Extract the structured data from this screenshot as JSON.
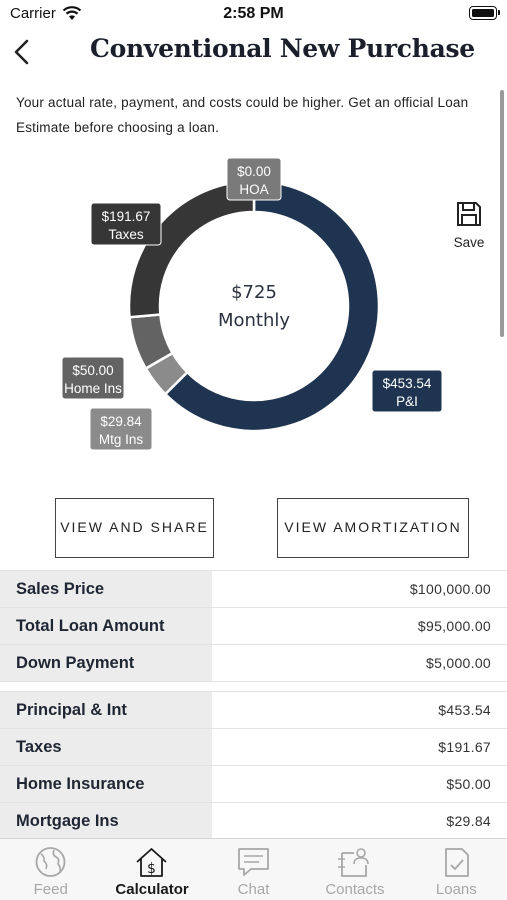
{
  "status_bar": {
    "carrier": "Carrier",
    "time": "2:58 PM"
  },
  "header": {
    "title": "Conventional New Purchase",
    "back_icon": "chevron-left-icon"
  },
  "disclaimer": "Your actual rate, payment, and costs could be higher. Get an official Loan Estimate before choosing a loan.",
  "save": {
    "label": "Save",
    "icon": "floppy-disk-icon"
  },
  "chart_data": {
    "type": "pie",
    "center": {
      "amount": "$725",
      "label": "Monthly"
    },
    "slices": [
      {
        "name": "P&I",
        "value": 453.54,
        "label": "$453.54",
        "color": "#1e3450"
      },
      {
        "name": "Mtg Ins",
        "value": 29.84,
        "label": "$29.84",
        "color": "#8b8b8b"
      },
      {
        "name": "Home Ins",
        "value": 50.0,
        "label": "$50.00",
        "color": "#636363"
      },
      {
        "name": "Taxes",
        "value": 191.67,
        "label": "$191.67",
        "color": "#363636"
      },
      {
        "name": "HOA",
        "value": 0.0,
        "label": "$0.00",
        "color": "#7a7a7a"
      }
    ]
  },
  "buttons": {
    "view_share": "VIEW AND SHARE",
    "view_amortization": "VIEW AMORTIZATION"
  },
  "summary": [
    {
      "label": "Sales Price",
      "value": "$100,000.00"
    },
    {
      "label": "Total Loan Amount",
      "value": "$95,000.00"
    },
    {
      "label": "Down Payment",
      "value": "$5,000.00"
    }
  ],
  "breakdown": [
    {
      "label": "Principal & Int",
      "value": "$453.54"
    },
    {
      "label": "Taxes",
      "value": "$191.67"
    },
    {
      "label": "Home Insurance",
      "value": "$50.00"
    },
    {
      "label": "Mortgage Ins",
      "value": "$29.84"
    }
  ],
  "tabs": [
    {
      "label": "Feed",
      "icon": "globe-icon",
      "active": false
    },
    {
      "label": "Calculator",
      "icon": "house-dollar-icon",
      "active": true
    },
    {
      "label": "Chat",
      "icon": "chat-bubble-icon",
      "active": false
    },
    {
      "label": "Contacts",
      "icon": "contacts-icon",
      "active": false
    },
    {
      "label": "Loans",
      "icon": "document-check-icon",
      "active": false
    }
  ]
}
